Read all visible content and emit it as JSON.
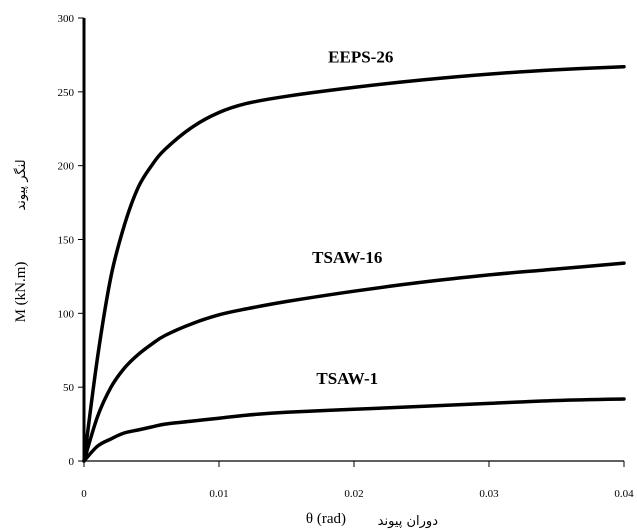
{
  "chart_data": {
    "type": "line",
    "xlabel": "θ (rad)",
    "xlabel_alt": "دوران پیوند",
    "ylabel": "M (kN.m)",
    "ylabel_alt": "لنگر پیوند",
    "xlim": [
      0,
      0.04
    ],
    "ylim": [
      0,
      300
    ],
    "x_ticks": [
      "0",
      "0.01",
      "0.02",
      "0.03",
      "0.04"
    ],
    "y_ticks": [
      "0",
      "50",
      "100",
      "150",
      "200",
      "250",
      "300"
    ],
    "grid": false,
    "series": [
      {
        "name": "EEPS-26",
        "x": [
          0,
          0.001,
          0.002,
          0.003,
          0.004,
          0.005,
          0.006,
          0.008,
          0.01,
          0.012,
          0.015,
          0.02,
          0.025,
          0.03,
          0.035,
          0.04
        ],
        "y": [
          0,
          70,
          125,
          160,
          185,
          200,
          211,
          226,
          236,
          242,
          247,
          253,
          258,
          262,
          265,
          267
        ]
      },
      {
        "name": "TSAW-16",
        "x": [
          0,
          0.001,
          0.002,
          0.003,
          0.004,
          0.005,
          0.006,
          0.008,
          0.01,
          0.012,
          0.015,
          0.02,
          0.025,
          0.03,
          0.035,
          0.04
        ],
        "y": [
          0,
          30,
          50,
          63,
          72,
          79,
          85,
          93,
          99,
          103,
          108,
          115,
          121,
          126,
          130,
          134
        ]
      },
      {
        "name": "TSAW-1",
        "x": [
          0,
          0.001,
          0.002,
          0.003,
          0.004,
          0.005,
          0.006,
          0.008,
          0.01,
          0.012,
          0.015,
          0.02,
          0.025,
          0.03,
          0.035,
          0.04
        ],
        "y": [
          0,
          10,
          15,
          19,
          21,
          23,
          25,
          27,
          29,
          31,
          33,
          35,
          37,
          39,
          41,
          42
        ]
      }
    ]
  }
}
